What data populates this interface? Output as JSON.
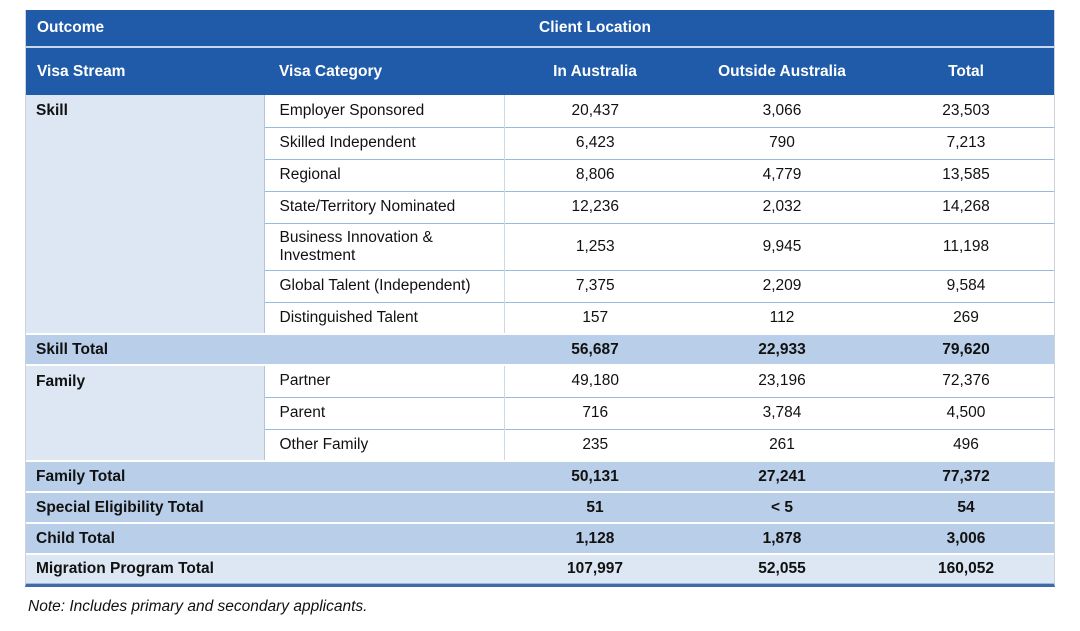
{
  "table": {
    "header1": {
      "outcome": "Outcome",
      "client_location": "Client Location"
    },
    "header2": {
      "visa_stream": "Visa Stream",
      "visa_category": "Visa Category",
      "in_australia": "In Australia",
      "outside_australia": "Outside Australia",
      "total": "Total"
    },
    "rows": [
      {
        "stream": "Skill",
        "category": "Employer Sponsored",
        "in_australia": "20,437",
        "outside_australia": "3,066",
        "total": "23,503"
      },
      {
        "category": "Skilled Independent",
        "in_australia": "6,423",
        "outside_australia": "790",
        "total": "7,213"
      },
      {
        "category": "Regional",
        "in_australia": "8,806",
        "outside_australia": "4,779",
        "total": "13,585"
      },
      {
        "category": "State/Territory Nominated",
        "in_australia": "12,236",
        "outside_australia": "2,032",
        "total": "14,268"
      },
      {
        "category": "Business Innovation & Investment",
        "in_australia": "1,253",
        "outside_australia": "9,945",
        "total": "11,198"
      },
      {
        "category": "Global Talent (Independent)",
        "in_australia": "7,375",
        "outside_australia": "2,209",
        "total": "9,584"
      },
      {
        "category": "Distinguished Talent",
        "in_australia": "157",
        "outside_australia": "112",
        "total": "269"
      },
      {
        "label": "Skill Total",
        "in_australia": "56,687",
        "outside_australia": "22,933",
        "total": "79,620"
      },
      {
        "stream": "Family",
        "category": "Partner",
        "in_australia": "49,180",
        "outside_australia": "23,196",
        "total": "72,376"
      },
      {
        "category": "Parent",
        "in_australia": "716",
        "outside_australia": "3,784",
        "total": "4,500"
      },
      {
        "category": "Other Family",
        "in_australia": "235",
        "outside_australia": "261",
        "total": "496"
      },
      {
        "label": "Family Total",
        "in_australia": "50,131",
        "outside_australia": "27,241",
        "total": "77,372"
      },
      {
        "label": "Special Eligibility Total",
        "in_australia": "51",
        "outside_australia": "< 5",
        "total": "54"
      },
      {
        "label": "Child Total",
        "in_australia": "1,128",
        "outside_australia": "1,878",
        "total": "3,006"
      },
      {
        "label": "Migration Program Total",
        "in_australia": "107,997",
        "outside_australia": "52,055",
        "total": "160,052"
      }
    ]
  },
  "note": "Note: Includes primary and secondary applicants.",
  "colors": {
    "header_bg": "#1f5ba9",
    "header_text": "#ffffff",
    "total_row_bg": "#b9cee8",
    "stream_cell_bg": "#dce7f3",
    "grand_total_row_bg": "#dce7f3",
    "row_divider": "#9bb9dc",
    "bottom_border": "#3e6ba8"
  }
}
